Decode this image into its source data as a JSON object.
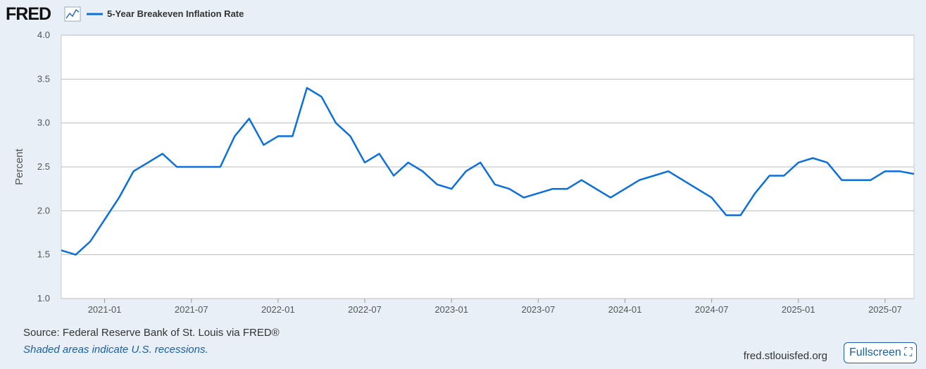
{
  "header": {
    "logo": "FRED"
  },
  "chart_data": {
    "type": "line",
    "y_label": "Percent",
    "x": [
      "2020-10",
      "2020-11",
      "2020-12",
      "2021-01",
      "2021-02",
      "2021-03",
      "2021-04",
      "2021-05",
      "2021-06",
      "2021-07",
      "2021-08",
      "2021-09",
      "2021-10",
      "2021-11",
      "2021-12",
      "2022-01",
      "2022-02",
      "2022-03",
      "2022-04",
      "2022-05",
      "2022-06",
      "2022-07",
      "2022-08",
      "2022-09",
      "2022-10",
      "2022-11",
      "2022-12",
      "2023-01",
      "2023-02",
      "2023-03",
      "2023-04",
      "2023-05",
      "2023-06",
      "2023-07",
      "2023-08",
      "2023-09",
      "2023-10",
      "2023-11",
      "2023-12",
      "2024-01",
      "2024-02",
      "2024-03",
      "2024-04",
      "2024-05",
      "2024-06",
      "2024-07",
      "2024-08",
      "2024-09",
      "2024-10",
      "2024-11",
      "2024-12",
      "2025-01",
      "2025-02",
      "2025-03",
      "2025-04",
      "2025-05",
      "2025-06",
      "2025-07",
      "2025-08",
      "2025-09"
    ],
    "series": [
      {
        "name": "5-Year Breakeven Inflation Rate",
        "color": "#0b6fdc",
        "values": [
          1.55,
          1.5,
          1.65,
          1.9,
          2.15,
          2.45,
          2.55,
          2.65,
          2.5,
          2.5,
          2.5,
          2.5,
          2.85,
          3.05,
          2.75,
          2.85,
          2.85,
          3.4,
          3.3,
          3.0,
          2.85,
          2.55,
          2.65,
          2.4,
          2.55,
          2.45,
          2.3,
          2.25,
          2.45,
          2.55,
          2.3,
          2.25,
          2.15,
          2.2,
          2.25,
          2.25,
          2.35,
          2.25,
          2.15,
          2.25,
          2.35,
          2.4,
          2.45,
          2.35,
          2.25,
          2.15,
          1.95,
          1.95,
          2.2,
          2.4,
          2.4,
          2.55,
          2.6,
          2.55,
          2.35,
          2.35,
          2.35,
          2.45,
          2.45,
          2.42
        ]
      }
    ],
    "xlim": [
      "2020-10",
      "2025-09"
    ],
    "xticks": [
      "2021-01",
      "2021-07",
      "2022-01",
      "2022-07",
      "2023-01",
      "2023-07",
      "2024-01",
      "2024-07",
      "2025-01",
      "2025-07"
    ],
    "ylim": [
      1,
      4
    ],
    "yticks": [
      {
        "value": 1,
        "label": "1.0"
      },
      1.5,
      {
        "value": 2,
        "label": "2.0"
      },
      2.5,
      {
        "value": 3,
        "label": "3.0"
      },
      3.5,
      {
        "value": 4,
        "label": "4.0"
      }
    ],
    "grid": true
  },
  "footer": {
    "source": "Source: Federal Reserve Bank of St. Louis via FRED®",
    "note": "Shaded areas indicate U.S. recessions.",
    "site": "fred.stlouisfed.org",
    "button": "Fullscreen"
  }
}
